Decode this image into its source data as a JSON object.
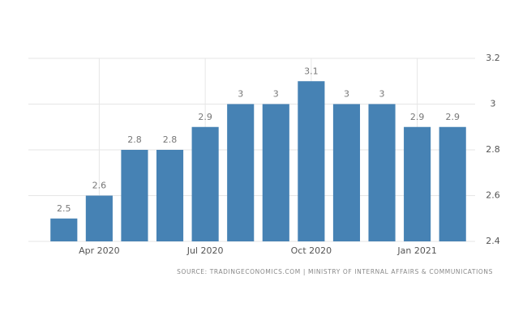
{
  "chart_data": {
    "type": "bar",
    "categories": [
      null,
      "Apr 2020",
      null,
      null,
      "Jul 2020",
      null,
      null,
      "Oct 2020",
      null,
      null,
      "Jan 2021",
      null
    ],
    "values": [
      2.5,
      2.6,
      2.8,
      2.8,
      2.9,
      3,
      3,
      3.1,
      3,
      3,
      2.9,
      2.9
    ],
    "color": "#4682b4",
    "ylim": [
      2.4,
      3.2
    ],
    "yticks": [
      2.4,
      2.6,
      2.8,
      3,
      3.2
    ],
    "grid": true,
    "source": "SOURCE: TRADINGECONOMICS.COM | MINISTRY OF INTERNAL AFFAIRS & COMMUNICATIONS"
  }
}
